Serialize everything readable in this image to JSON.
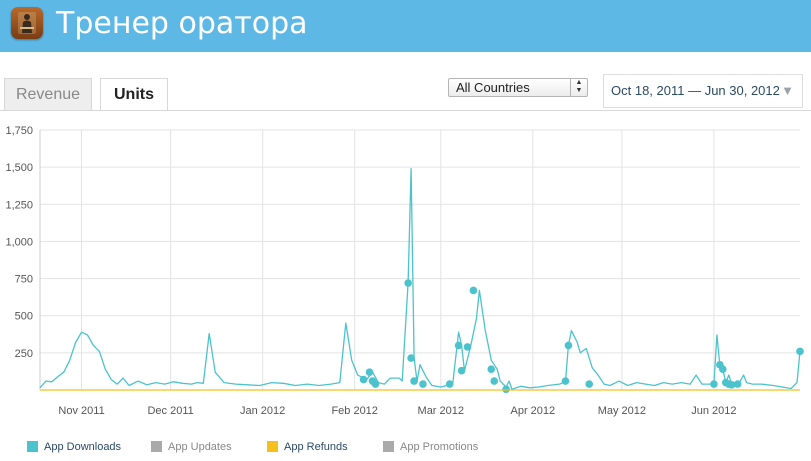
{
  "app": {
    "title": "Тренер оратора",
    "icon": "speaker-icon"
  },
  "tabs": [
    {
      "label": "Revenue",
      "active": false
    },
    {
      "label": "Units",
      "active": true
    }
  ],
  "country_select": {
    "value": "All Countries"
  },
  "date_range": {
    "value": "Oct 18, 2011 — Jun 30, 2012"
  },
  "legend": [
    {
      "label": "App Downloads",
      "color": "#4cc3cc"
    },
    {
      "label": "App Updates",
      "color": "#aaaaaa"
    },
    {
      "label": "App Refunds",
      "color": "#f5c01e"
    },
    {
      "label": "App Promotions",
      "color": "#aaaaaa"
    }
  ],
  "chart_data": {
    "type": "line",
    "title": "",
    "xlabel": "",
    "ylabel": "",
    "x_range": [
      "2011-10-18",
      "2012-06-30"
    ],
    "ylim": [
      0,
      1750
    ],
    "y_ticks": [
      250,
      500,
      750,
      1000,
      1250,
      1500,
      1750
    ],
    "y_tick_labels": [
      "250",
      "500",
      "750",
      "1,000",
      "1,250",
      "1,500",
      "1,750"
    ],
    "x_ticks": [
      "2011-11-01",
      "2011-12-01",
      "2012-01-01",
      "2012-02-01",
      "2012-03-01",
      "2012-04-01",
      "2012-05-01",
      "2012-06-01"
    ],
    "x_tick_labels": [
      "Nov 2011",
      "Dec 2011",
      "Jan 2012",
      "Feb 2012",
      "Mar 2012",
      "Apr 2012",
      "May 2012",
      "Jun 2012"
    ],
    "grid": true,
    "legend_position": "bottom",
    "series": [
      {
        "name": "App Downloads",
        "color": "#4cc3cc",
        "points": [
          [
            "2011-10-18",
            15
          ],
          [
            "2011-10-20",
            60
          ],
          [
            "2011-10-22",
            55
          ],
          [
            "2011-10-24",
            90
          ],
          [
            "2011-10-26",
            120
          ],
          [
            "2011-10-28",
            200
          ],
          [
            "2011-10-30",
            320
          ],
          [
            "2011-11-01",
            390
          ],
          [
            "2011-11-03",
            370
          ],
          [
            "2011-11-05",
            300
          ],
          [
            "2011-11-07",
            260
          ],
          [
            "2011-11-09",
            140
          ],
          [
            "2011-11-11",
            70
          ],
          [
            "2011-11-13",
            40
          ],
          [
            "2011-11-15",
            80
          ],
          [
            "2011-11-17",
            30
          ],
          [
            "2011-11-20",
            60
          ],
          [
            "2011-11-23",
            35
          ],
          [
            "2011-11-26",
            50
          ],
          [
            "2011-11-29",
            40
          ],
          [
            "2011-12-02",
            55
          ],
          [
            "2011-12-05",
            45
          ],
          [
            "2011-12-08",
            40
          ],
          [
            "2011-12-10",
            50
          ],
          [
            "2011-12-12",
            45
          ],
          [
            "2011-12-14",
            380
          ],
          [
            "2011-12-16",
            120
          ],
          [
            "2011-12-19",
            50
          ],
          [
            "2011-12-23",
            40
          ],
          [
            "2011-12-27",
            35
          ],
          [
            "2011-12-31",
            30
          ],
          [
            "2012-01-04",
            50
          ],
          [
            "2012-01-08",
            45
          ],
          [
            "2012-01-12",
            30
          ],
          [
            "2012-01-16",
            40
          ],
          [
            "2012-01-20",
            30
          ],
          [
            "2012-01-24",
            40
          ],
          [
            "2012-01-27",
            50
          ],
          [
            "2012-01-29",
            450
          ],
          [
            "2012-01-31",
            200
          ],
          [
            "2012-02-02",
            100
          ],
          [
            "2012-02-05",
            70
          ],
          [
            "2012-02-07",
            120
          ],
          [
            "2012-02-09",
            50
          ],
          [
            "2012-02-11",
            40
          ],
          [
            "2012-02-13",
            80
          ],
          [
            "2012-02-16",
            80
          ],
          [
            "2012-02-17",
            60
          ],
          [
            "2012-02-19",
            720
          ],
          [
            "2012-02-20",
            1490
          ],
          [
            "2012-02-21",
            215
          ],
          [
            "2012-02-22",
            60
          ],
          [
            "2012-02-23",
            170
          ],
          [
            "2012-02-25",
            90
          ],
          [
            "2012-02-27",
            30
          ],
          [
            "2012-03-01",
            20
          ],
          [
            "2012-03-03",
            30
          ],
          [
            "2012-03-05",
            40
          ],
          [
            "2012-03-07",
            390
          ],
          [
            "2012-03-08",
            300
          ],
          [
            "2012-03-09",
            130
          ],
          [
            "2012-03-11",
            290
          ],
          [
            "2012-03-13",
            480
          ],
          [
            "2012-03-14",
            670
          ],
          [
            "2012-03-16",
            400
          ],
          [
            "2012-03-18",
            200
          ],
          [
            "2012-03-20",
            140
          ],
          [
            "2012-03-21",
            60
          ],
          [
            "2012-03-23",
            20
          ],
          [
            "2012-03-24",
            60
          ],
          [
            "2012-03-25",
            5
          ],
          [
            "2012-03-28",
            25
          ],
          [
            "2012-03-31",
            15
          ],
          [
            "2012-04-03",
            20
          ],
          [
            "2012-04-06",
            30
          ],
          [
            "2012-04-10",
            40
          ],
          [
            "2012-04-12",
            55
          ],
          [
            "2012-04-13",
            300
          ],
          [
            "2012-04-14",
            400
          ],
          [
            "2012-04-16",
            320
          ],
          [
            "2012-04-17",
            250
          ],
          [
            "2012-04-19",
            280
          ],
          [
            "2012-04-21",
            150
          ],
          [
            "2012-04-23",
            100
          ],
          [
            "2012-04-25",
            40
          ],
          [
            "2012-04-27",
            30
          ],
          [
            "2012-04-30",
            60
          ],
          [
            "2012-05-03",
            30
          ],
          [
            "2012-05-06",
            50
          ],
          [
            "2012-05-09",
            40
          ],
          [
            "2012-05-12",
            30
          ],
          [
            "2012-05-15",
            50
          ],
          [
            "2012-05-18",
            40
          ],
          [
            "2012-05-21",
            50
          ],
          [
            "2012-05-24",
            40
          ],
          [
            "2012-05-26",
            100
          ],
          [
            "2012-05-28",
            40
          ],
          [
            "2012-05-31",
            40
          ],
          [
            "2012-06-01",
            40
          ],
          [
            "2012-06-02",
            370
          ],
          [
            "2012-06-03",
            170
          ],
          [
            "2012-06-04",
            140
          ],
          [
            "2012-06-05",
            50
          ],
          [
            "2012-06-06",
            100
          ],
          [
            "2012-06-07",
            40
          ],
          [
            "2012-06-08",
            40
          ],
          [
            "2012-06-09",
            30
          ],
          [
            "2012-06-11",
            100
          ],
          [
            "2012-06-12",
            50
          ],
          [
            "2012-06-14",
            40
          ],
          [
            "2012-06-17",
            40
          ],
          [
            "2012-06-21",
            30
          ],
          [
            "2012-06-24",
            20
          ],
          [
            "2012-06-27",
            10
          ],
          [
            "2012-06-29",
            50
          ],
          [
            "2012-06-30",
            260
          ]
        ],
        "markers": [
          [
            "2012-02-04",
            70
          ],
          [
            "2012-02-06",
            120
          ],
          [
            "2012-02-07",
            60
          ],
          [
            "2012-02-08",
            40
          ],
          [
            "2012-02-19",
            720
          ],
          [
            "2012-02-20",
            215
          ],
          [
            "2012-02-21",
            60
          ],
          [
            "2012-02-24",
            40
          ],
          [
            "2012-03-04",
            40
          ],
          [
            "2012-03-07",
            300
          ],
          [
            "2012-03-08",
            130
          ],
          [
            "2012-03-10",
            290
          ],
          [
            "2012-03-12",
            670
          ],
          [
            "2012-03-18",
            140
          ],
          [
            "2012-03-19",
            60
          ],
          [
            "2012-03-23",
            5
          ],
          [
            "2012-04-12",
            60
          ],
          [
            "2012-04-13",
            300
          ],
          [
            "2012-04-20",
            40
          ],
          [
            "2012-06-01",
            40
          ],
          [
            "2012-06-03",
            170
          ],
          [
            "2012-06-04",
            140
          ],
          [
            "2012-06-05",
            50
          ],
          [
            "2012-06-06",
            40
          ],
          [
            "2012-06-07",
            35
          ],
          [
            "2012-06-09",
            40
          ],
          [
            "2012-06-30",
            260
          ]
        ]
      },
      {
        "name": "App Refunds",
        "color": "#f5c01e",
        "points": [
          [
            "2011-10-18",
            0
          ],
          [
            "2012-06-30",
            0
          ]
        ]
      }
    ]
  }
}
